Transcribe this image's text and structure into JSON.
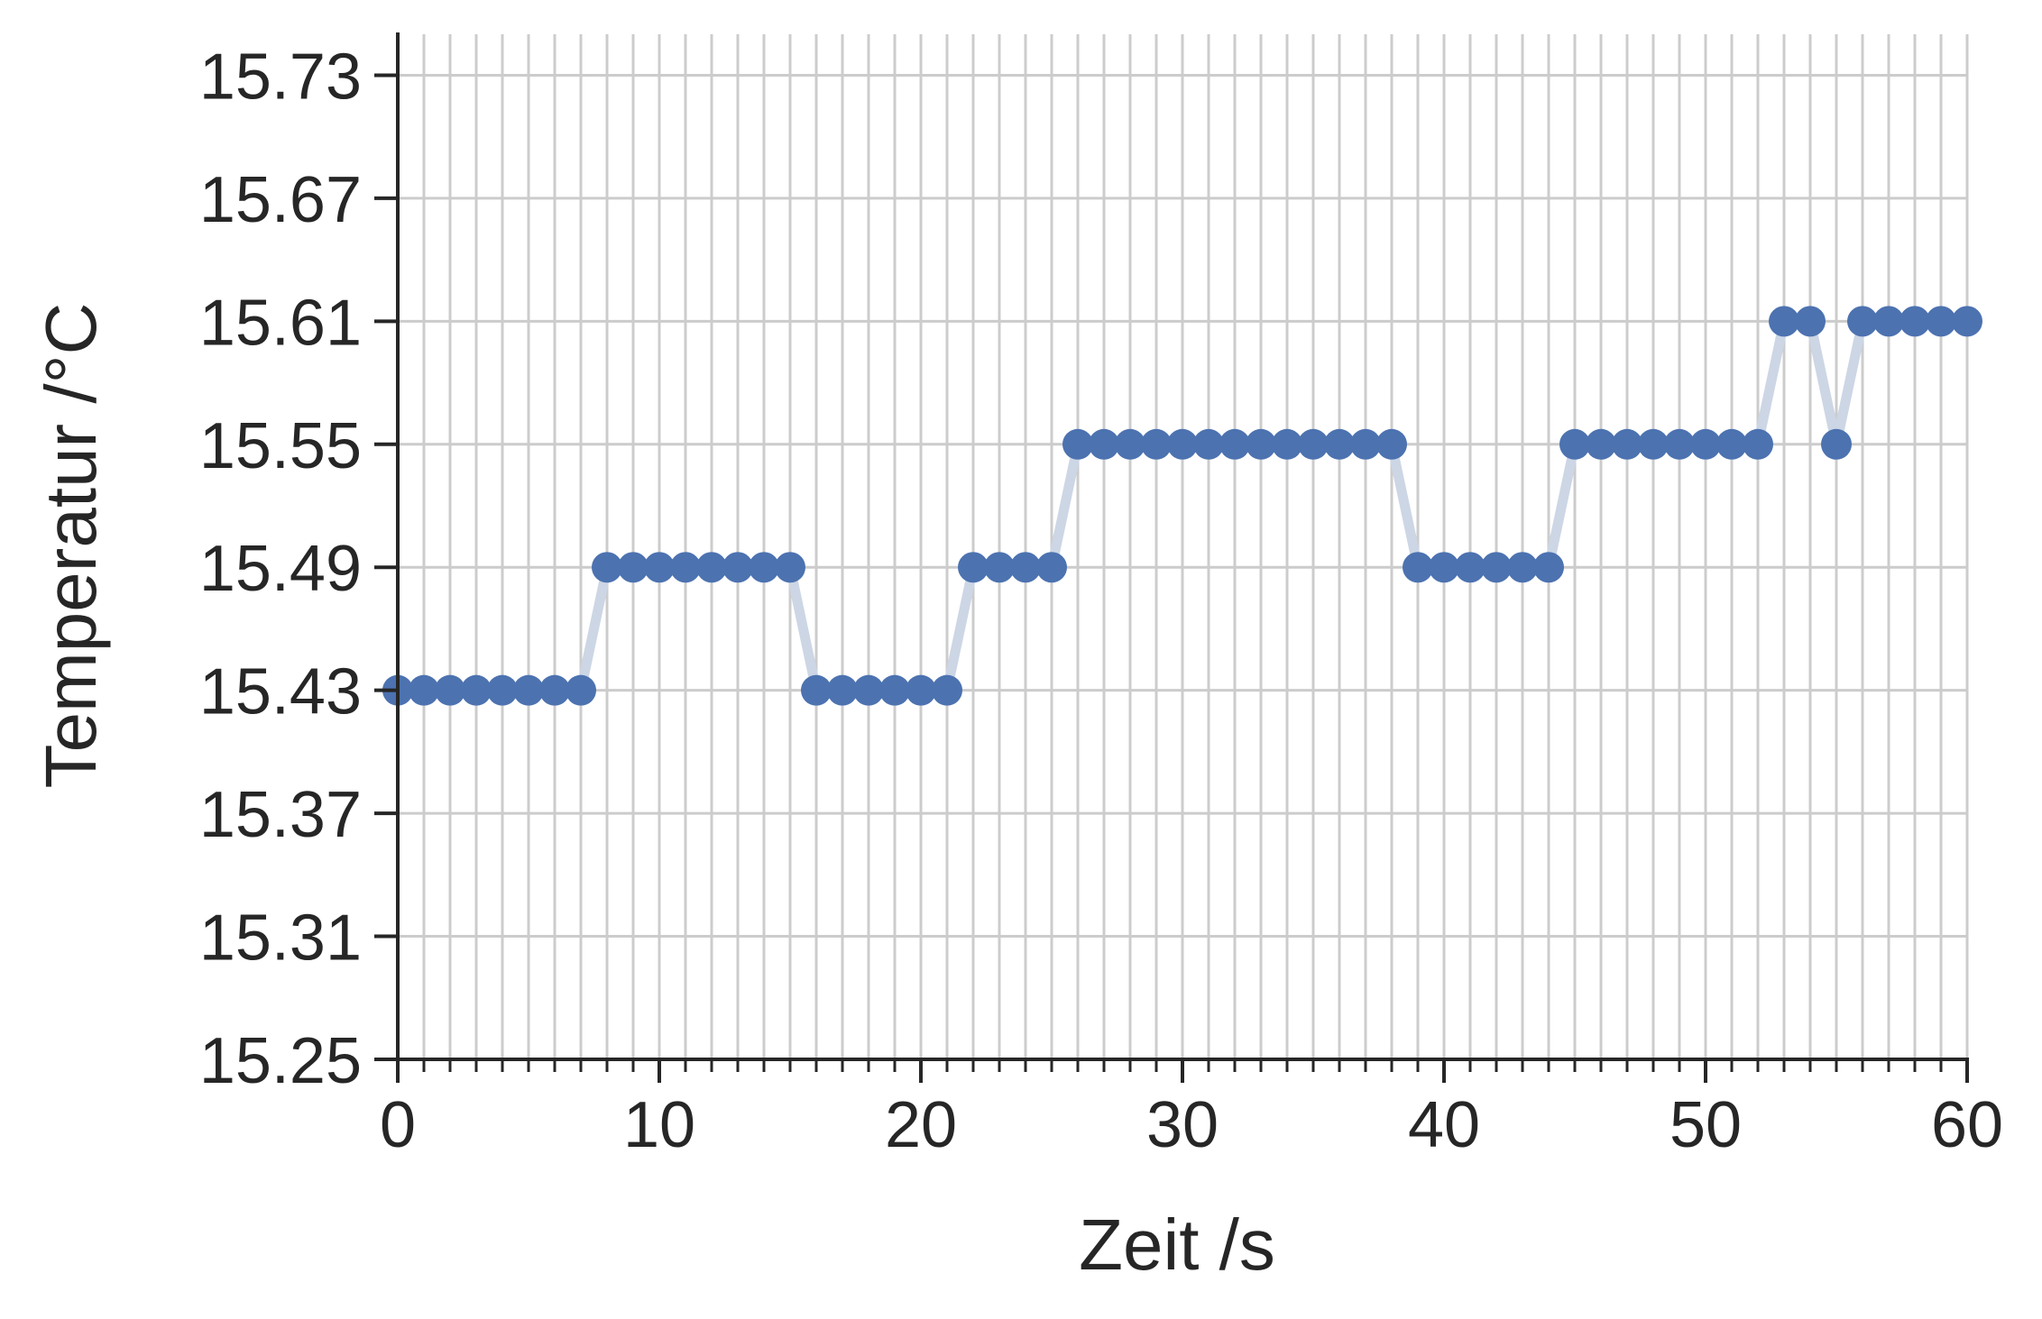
{
  "chart_data": {
    "type": "line",
    "xlabel": "Zeit /s",
    "ylabel": "Temperatur /°C",
    "xlim": [
      0,
      60
    ],
    "ylim": [
      15.25,
      15.75
    ],
    "x_ticks": [
      "0",
      "10",
      "20",
      "30",
      "40",
      "50",
      "60"
    ],
    "y_ticks": [
      "15.25",
      "15.31",
      "15.37",
      "15.43",
      "15.49",
      "15.55",
      "15.61",
      "15.67",
      "15.73"
    ],
    "grid": true,
    "markers": true,
    "colors": {
      "marker": "#4c72b0",
      "line": "#ccd6e5",
      "grid": "#cccccc",
      "axis": "#262626"
    },
    "series": [
      {
        "x": [
          0,
          1,
          2,
          3,
          4,
          5,
          6,
          7,
          8,
          9,
          10,
          11,
          12,
          13,
          14,
          15,
          16,
          17,
          18,
          19,
          20,
          21,
          22,
          23,
          24,
          25,
          26,
          27,
          28,
          29,
          30,
          31,
          32,
          33,
          34,
          35,
          36,
          37,
          38,
          39,
          40,
          41,
          42,
          43,
          44,
          45,
          46,
          47,
          48,
          49,
          50,
          51,
          52,
          53,
          54,
          55,
          56,
          57,
          58,
          59,
          60
        ],
        "y": [
          15.43,
          15.43,
          15.43,
          15.43,
          15.43,
          15.43,
          15.43,
          15.43,
          15.49,
          15.49,
          15.49,
          15.49,
          15.49,
          15.49,
          15.49,
          15.49,
          15.43,
          15.43,
          15.43,
          15.43,
          15.43,
          15.43,
          15.49,
          15.49,
          15.49,
          15.49,
          15.55,
          15.55,
          15.55,
          15.55,
          15.55,
          15.55,
          15.55,
          15.55,
          15.55,
          15.55,
          15.55,
          15.55,
          15.55,
          15.49,
          15.49,
          15.49,
          15.49,
          15.49,
          15.49,
          15.55,
          15.55,
          15.55,
          15.55,
          15.55,
          15.55,
          15.55,
          15.55,
          15.61,
          15.61,
          15.55,
          15.61,
          15.61,
          15.61,
          15.61,
          15.61
        ]
      }
    ]
  }
}
